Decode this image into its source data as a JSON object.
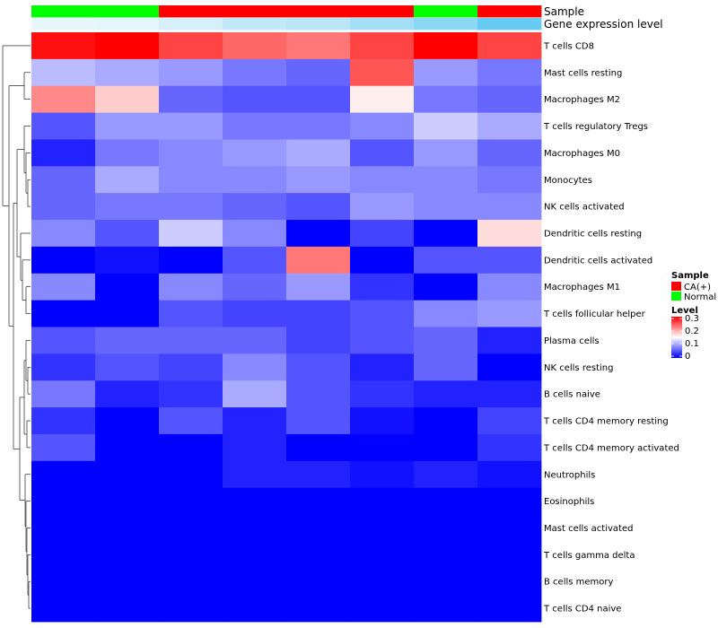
{
  "chart_data": {
    "type": "heatmap",
    "annotation_labels": {
      "sample": "Sample",
      "expression": "Gene expression level"
    },
    "columns": [
      {
        "sample": "Normal",
        "expression": 0.0
      },
      {
        "sample": "Normal",
        "expression": 0.02
      },
      {
        "sample": "CA(+)",
        "expression": 0.12
      },
      {
        "sample": "CA(+)",
        "expression": 0.25
      },
      {
        "sample": "CA(+)",
        "expression": 0.3
      },
      {
        "sample": "CA(+)",
        "expression": 0.45
      },
      {
        "sample": "Normal",
        "expression": 0.6
      },
      {
        "sample": "CA(+)",
        "expression": 0.85
      }
    ],
    "rows": [
      "T cells CD8",
      "Mast cells resting",
      "Macrophages M2",
      "T cells regulatory  Tregs",
      "Macrophages M0",
      "Monocytes",
      "NK cells activated",
      "Dendritic cells resting",
      "Dendritic cells activated",
      "Macrophages M1",
      "T cells follicular helper",
      "Plasma cells",
      "NK cells resting",
      "B cells naive",
      "T cells CD4 memory resting",
      "T cells CD4 memory activated",
      "Neutrophils",
      "Eosinophils",
      "Mast cells activated",
      "T cells gamma delta",
      "B cells memory",
      "T cells CD4 naive"
    ],
    "values": [
      [
        0.29,
        0.3,
        0.26,
        0.24,
        0.23,
        0.26,
        0.3,
        0.26
      ],
      [
        0.11,
        0.1,
        0.09,
        0.07,
        0.06,
        0.25,
        0.09,
        0.07
      ],
      [
        0.22,
        0.18,
        0.06,
        0.05,
        0.05,
        0.16,
        0.07,
        0.06
      ],
      [
        0.05,
        0.09,
        0.09,
        0.07,
        0.07,
        0.08,
        0.12,
        0.1
      ],
      [
        0.02,
        0.07,
        0.08,
        0.09,
        0.1,
        0.05,
        0.09,
        0.06
      ],
      [
        0.06,
        0.1,
        0.08,
        0.08,
        0.09,
        0.08,
        0.08,
        0.07
      ],
      [
        0.06,
        0.07,
        0.07,
        0.06,
        0.05,
        0.09,
        0.08,
        0.08
      ],
      [
        0.08,
        0.05,
        0.12,
        0.08,
        0.0,
        0.04,
        0.0,
        0.17
      ],
      [
        0.0,
        0.01,
        0.0,
        0.05,
        0.23,
        0.0,
        0.05,
        0.05
      ],
      [
        0.08,
        0.0,
        0.08,
        0.06,
        0.09,
        0.03,
        0.0,
        0.08
      ],
      [
        0.0,
        0.0,
        0.05,
        0.04,
        0.04,
        0.05,
        0.08,
        0.09
      ],
      [
        0.05,
        0.06,
        0.06,
        0.06,
        0.04,
        0.05,
        0.06,
        0.02
      ],
      [
        0.03,
        0.05,
        0.04,
        0.08,
        0.05,
        0.02,
        0.06,
        0.0
      ],
      [
        0.07,
        0.02,
        0.03,
        0.1,
        0.05,
        0.03,
        0.02,
        0.02
      ],
      [
        0.03,
        0.0,
        0.05,
        0.02,
        0.05,
        0.01,
        0.0,
        0.04
      ],
      [
        0.05,
        0.0,
        0.0,
        0.02,
        0.0,
        0.0,
        0.0,
        0.03
      ],
      [
        0.0,
        0.0,
        0.0,
        0.02,
        0.02,
        0.01,
        0.02,
        0.01
      ],
      [
        0.0,
        0.0,
        0.0,
        0.0,
        0.0,
        0.0,
        0.0,
        0.0
      ],
      [
        0.0,
        0.0,
        0.0,
        0.0,
        0.0,
        0.0,
        0.0,
        0.0
      ],
      [
        0.0,
        0.0,
        0.0,
        0.0,
        0.0,
        0.0,
        0.0,
        0.0
      ],
      [
        0.0,
        0.0,
        0.0,
        0.0,
        0.0,
        0.0,
        0.0,
        0.0
      ],
      [
        0.0,
        0.0,
        0.0,
        0.0,
        0.0,
        0.0,
        0.0,
        0.0
      ]
    ],
    "color_scale": {
      "min": 0,
      "max": 0.3,
      "low": "#0000ff",
      "mid": "#ffffff",
      "high": "#ff0000"
    },
    "legend": {
      "sample_title": "Sample",
      "sample_entries": [
        {
          "label": "CA(+)",
          "color": "#ff0000"
        },
        {
          "label": "Normal",
          "color": "#00ff00"
        }
      ],
      "level_title": "Level",
      "level_ticks": [
        "0.3",
        "0.2",
        "0.1",
        "0"
      ]
    },
    "colors": {
      "CA(+)": "#ff0000",
      "Normal": "#00ff00",
      "expression_low": "#e8f6fc",
      "expression_high": "#4fc3ef"
    }
  }
}
